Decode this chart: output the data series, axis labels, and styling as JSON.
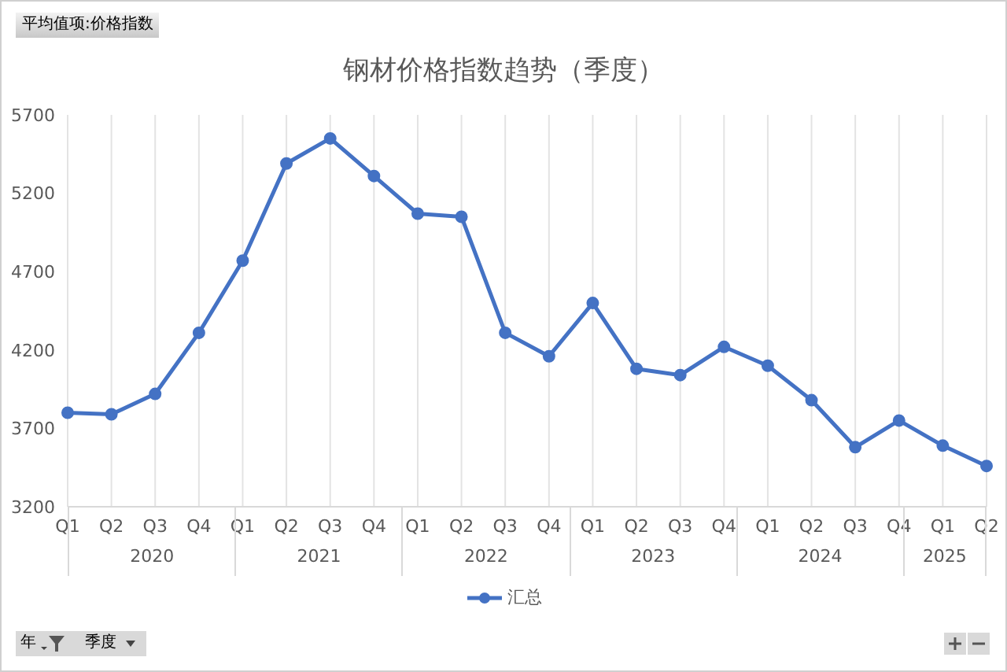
{
  "chart_data": {
    "type": "line",
    "title": "钢材价格指数趋势（季度）",
    "categories": [
      "Q1",
      "Q2",
      "Q3",
      "Q4",
      "Q1",
      "Q2",
      "Q3",
      "Q4",
      "Q1",
      "Q2",
      "Q3",
      "Q4",
      "Q1",
      "Q2",
      "Q3",
      "Q4",
      "Q1",
      "Q2",
      "Q3",
      "Q4",
      "Q1",
      "Q2"
    ],
    "series": [
      {
        "name": "汇总",
        "color": "#4472c4",
        "values": [
          3800,
          3790,
          3920,
          4310,
          4770,
          5390,
          5550,
          5310,
          5070,
          5050,
          4310,
          4160,
          4500,
          4080,
          4040,
          4220,
          4100,
          3880,
          3580,
          3750,
          3590,
          3460
        ]
      }
    ],
    "ylim": [
      3200,
      5700
    ],
    "yticks": [
      3200,
      3700,
      4200,
      4700,
      5200,
      5700
    ],
    "grid": "x",
    "legend": "bottom",
    "marker": "circle",
    "line_style": "solid",
    "annotations": [
      "平均值项:价格指数",
      "年",
      "季度",
      "2020",
      "2021",
      "2022",
      "2023",
      "2024",
      "2025"
    ]
  }
}
